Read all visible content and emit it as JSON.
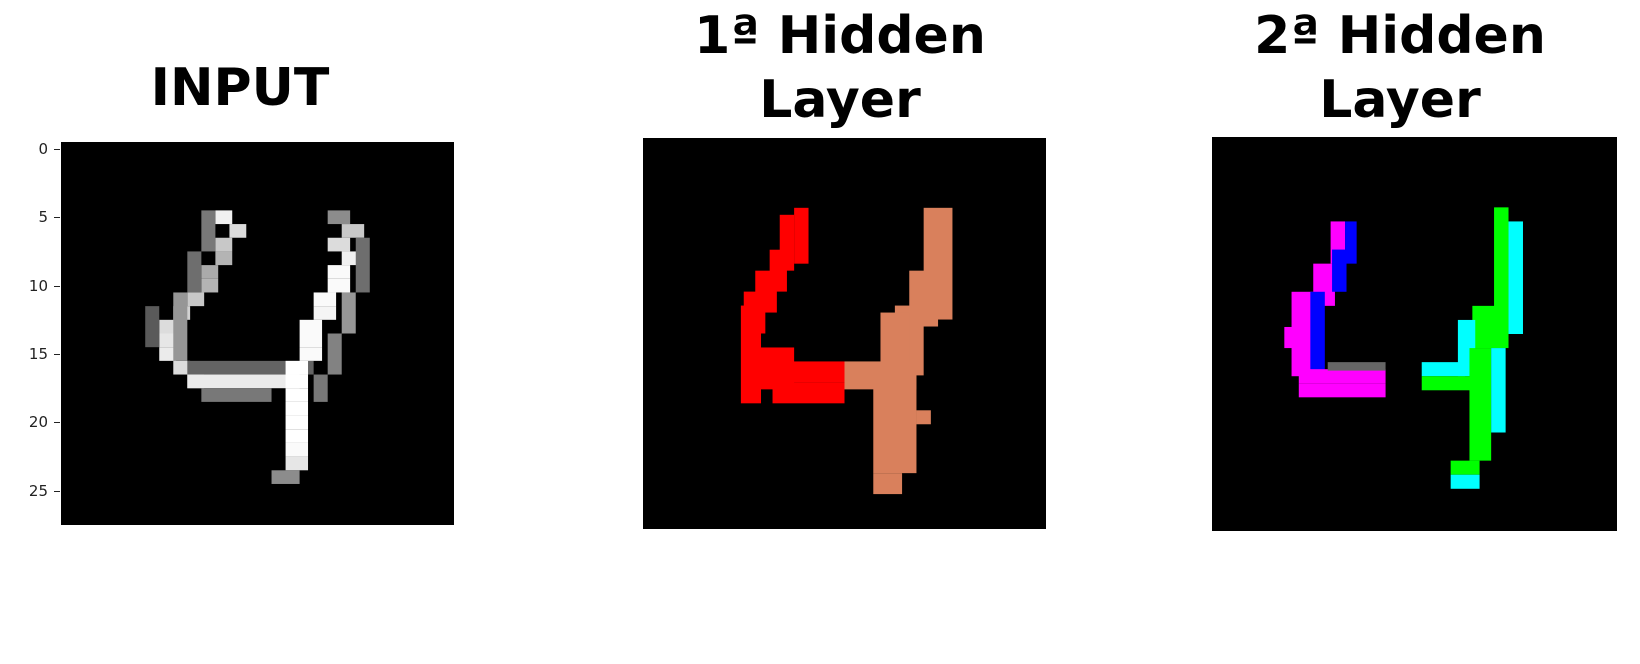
{
  "titles": {
    "input": "INPUT",
    "hidden1_line1": "1ª Hidden",
    "hidden1_line2": "Layer",
    "hidden2_line1": "2ª Hidden",
    "hidden2_line2": "Layer"
  },
  "input_axis": {
    "ticks": [
      "0",
      "5",
      "10",
      "15",
      "20",
      "25"
    ]
  },
  "colors": {
    "background": "#000000",
    "h1_left": "#ff0000",
    "h1_right": "#d9805c",
    "h2_magenta": "#ff00ff",
    "h2_blue": "#0000ff",
    "h2_cyan": "#00ffff",
    "h2_green": "#00ff00"
  }
}
